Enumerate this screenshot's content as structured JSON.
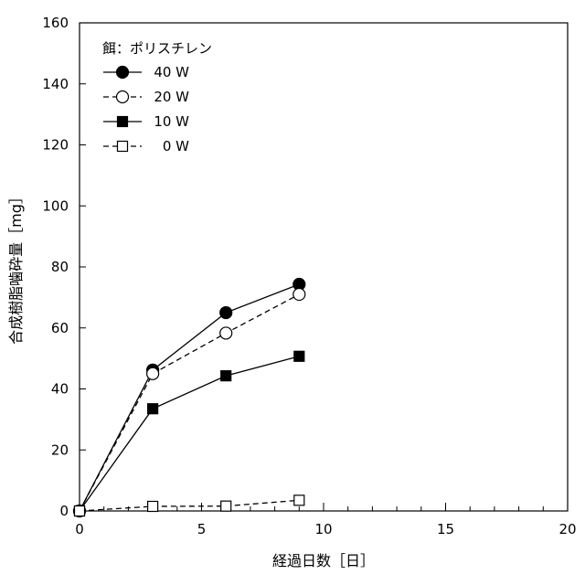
{
  "chart_data": {
    "type": "line",
    "title": "",
    "xlabel": "経過日数［日］",
    "ylabel": "合成樹脂噛砕量［mg］",
    "xlim": [
      0,
      20
    ],
    "ylim": [
      0,
      160
    ],
    "xticks": [
      0,
      5,
      10,
      15,
      20
    ],
    "yticks": [
      0,
      20,
      40,
      60,
      80,
      100,
      120,
      140,
      160
    ],
    "grid": false,
    "legend": {
      "title": "餌：ポリスチレン",
      "placement": "top-left"
    },
    "series": [
      {
        "name": "40 W",
        "marker": "circle",
        "fill": "filled",
        "line": "solid",
        "x": [
          0,
          3,
          6,
          9
        ],
        "y": [
          0,
          46.2,
          65.0,
          74.3
        ]
      },
      {
        "name": "20 W",
        "marker": "circle",
        "fill": "open",
        "line": "dashed",
        "x": [
          0,
          3,
          6,
          9
        ],
        "y": [
          0,
          45.0,
          58.3,
          71.0
        ]
      },
      {
        "name": "10 W",
        "marker": "square",
        "fill": "filled",
        "line": "solid",
        "x": [
          0,
          3,
          6,
          9
        ],
        "y": [
          0,
          33.5,
          44.3,
          50.7
        ]
      },
      {
        "name": "0 W",
        "marker": "square",
        "fill": "open",
        "line": "dashed",
        "x": [
          0,
          3,
          6,
          9
        ],
        "y": [
          0,
          1.5,
          1.6,
          3.5
        ]
      }
    ]
  }
}
